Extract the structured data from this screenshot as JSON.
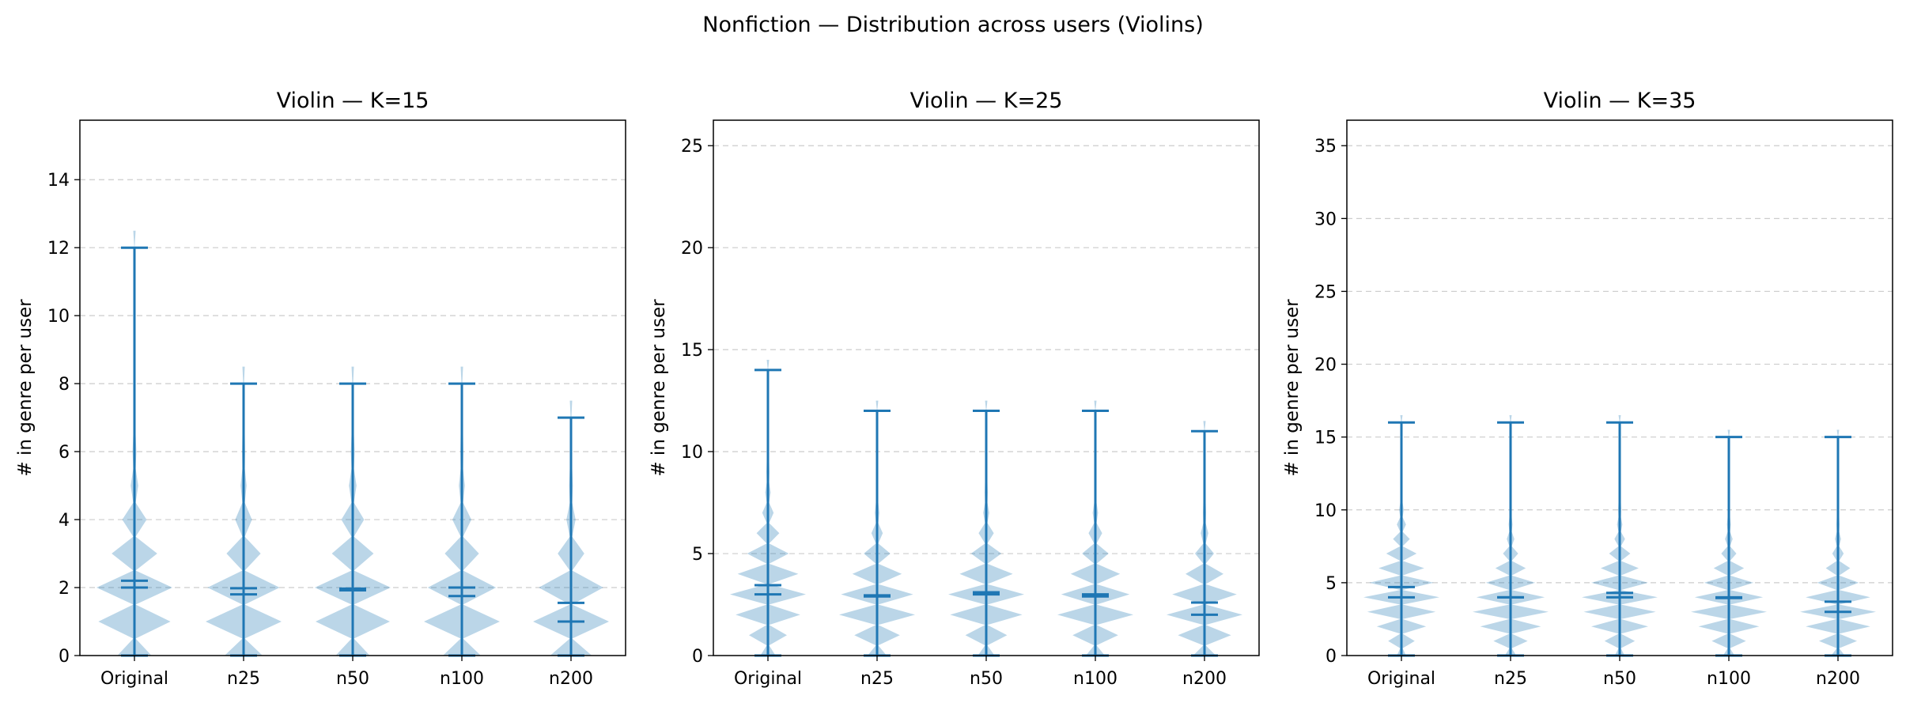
{
  "figure": {
    "title": "Nonfiction — Distribution across users (Violins)"
  },
  "colors": {
    "violin_fill": "#1f77b4",
    "violin_fill_opacity": 0.3,
    "line": "#1f77b4",
    "grid": "#cccccc"
  },
  "chart_data": [
    {
      "type": "violin",
      "title": "Violin — K=15",
      "xlabel": "",
      "ylabel": "# in genre per user",
      "categories": [
        "Original",
        "n25",
        "n50",
        "n100",
        "n200"
      ],
      "ylim": [
        0,
        15.75
      ],
      "yticks": [
        0,
        2,
        4,
        6,
        8,
        10,
        12,
        14
      ],
      "grid": "y",
      "series": [
        {
          "min": 0,
          "max": 12,
          "mean": 2.2,
          "median": 2.0,
          "density": [
            [
              0,
              0.45
            ],
            [
              1,
              0.95
            ],
            [
              2,
              1.0
            ],
            [
              3,
              0.6
            ],
            [
              4,
              0.32
            ],
            [
              5,
              0.1
            ],
            [
              6,
              0.05
            ],
            [
              7,
              0.03
            ],
            [
              8,
              0.02
            ],
            [
              9,
              0.01
            ],
            [
              10,
              0.01
            ],
            [
              11,
              0.005
            ],
            [
              12,
              0.005
            ]
          ]
        },
        {
          "min": 0,
          "max": 8,
          "mean": 1.98,
          "median": 1.8,
          "density": [
            [
              0,
              0.5
            ],
            [
              1,
              1.0
            ],
            [
              2,
              0.95
            ],
            [
              3,
              0.45
            ],
            [
              4,
              0.22
            ],
            [
              5,
              0.08
            ],
            [
              6,
              0.04
            ],
            [
              7,
              0.02
            ],
            [
              8,
              0.01
            ]
          ]
        },
        {
          "min": 0,
          "max": 8,
          "mean": 1.97,
          "median": 1.92,
          "density": [
            [
              0,
              0.45
            ],
            [
              1,
              0.98
            ],
            [
              2,
              1.0
            ],
            [
              3,
              0.55
            ],
            [
              4,
              0.3
            ],
            [
              5,
              0.1
            ],
            [
              6,
              0.05
            ],
            [
              7,
              0.02
            ],
            [
              8,
              0.01
            ]
          ]
        },
        {
          "min": 0,
          "max": 8,
          "mean": 2.0,
          "median": 1.75,
          "density": [
            [
              0,
              0.5
            ],
            [
              1,
              1.0
            ],
            [
              2,
              0.9
            ],
            [
              3,
              0.45
            ],
            [
              4,
              0.25
            ],
            [
              5,
              0.08
            ],
            [
              6,
              0.04
            ],
            [
              7,
              0.02
            ],
            [
              8,
              0.01
            ]
          ]
        },
        {
          "min": 0,
          "max": 7,
          "mean": 1.55,
          "median": 1.0,
          "density": [
            [
              0,
              0.55
            ],
            [
              1,
              1.0
            ],
            [
              2,
              0.85
            ],
            [
              3,
              0.35
            ],
            [
              4,
              0.12
            ],
            [
              5,
              0.05
            ],
            [
              6,
              0.03
            ],
            [
              7,
              0.01
            ]
          ]
        }
      ]
    },
    {
      "type": "violin",
      "title": "Violin — K=25",
      "xlabel": "",
      "ylabel": "# in genre per user",
      "categories": [
        "Original",
        "n25",
        "n50",
        "n100",
        "n200"
      ],
      "ylim": [
        0,
        26.25
      ],
      "yticks": [
        0,
        5,
        10,
        15,
        20,
        25
      ],
      "grid": "y",
      "series": [
        {
          "min": 0,
          "max": 14,
          "mean": 3.45,
          "median": 3.0,
          "density": [
            [
              0,
              0.2
            ],
            [
              1,
              0.5
            ],
            [
              2,
              0.85
            ],
            [
              3,
              1.0
            ],
            [
              4,
              0.8
            ],
            [
              5,
              0.55
            ],
            [
              6,
              0.3
            ],
            [
              7,
              0.15
            ],
            [
              8,
              0.07
            ],
            [
              9,
              0.04
            ],
            [
              10,
              0.02
            ],
            [
              11,
              0.01
            ],
            [
              12,
              0.01
            ],
            [
              13,
              0.005
            ],
            [
              14,
              0.005
            ]
          ]
        },
        {
          "min": 0,
          "max": 12,
          "mean": 2.95,
          "median": 2.9,
          "density": [
            [
              0,
              0.25
            ],
            [
              1,
              0.6
            ],
            [
              2,
              1.0
            ],
            [
              3,
              0.95
            ],
            [
              4,
              0.65
            ],
            [
              5,
              0.35
            ],
            [
              6,
              0.15
            ],
            [
              7,
              0.06
            ],
            [
              8,
              0.03
            ],
            [
              9,
              0.02
            ],
            [
              10,
              0.01
            ],
            [
              11,
              0.005
            ],
            [
              12,
              0.005
            ]
          ]
        },
        {
          "min": 0,
          "max": 12,
          "mean": 3.1,
          "median": 3.0,
          "density": [
            [
              0,
              0.22
            ],
            [
              1,
              0.55
            ],
            [
              2,
              0.95
            ],
            [
              3,
              1.0
            ],
            [
              4,
              0.7
            ],
            [
              5,
              0.4
            ],
            [
              6,
              0.2
            ],
            [
              7,
              0.08
            ],
            [
              8,
              0.04
            ],
            [
              9,
              0.02
            ],
            [
              10,
              0.01
            ],
            [
              11,
              0.005
            ],
            [
              12,
              0.005
            ]
          ]
        },
        {
          "min": 0,
          "max": 12,
          "mean": 3.0,
          "median": 2.9,
          "density": [
            [
              0,
              0.25
            ],
            [
              1,
              0.6
            ],
            [
              2,
              1.0
            ],
            [
              3,
              0.9
            ],
            [
              4,
              0.65
            ],
            [
              5,
              0.35
            ],
            [
              6,
              0.18
            ],
            [
              7,
              0.07
            ],
            [
              8,
              0.03
            ],
            [
              9,
              0.02
            ],
            [
              10,
              0.01
            ],
            [
              11,
              0.005
            ],
            [
              12,
              0.005
            ]
          ]
        },
        {
          "min": 0,
          "max": 11,
          "mean": 2.6,
          "median": 2.0,
          "density": [
            [
              0,
              0.3
            ],
            [
              1,
              0.7
            ],
            [
              2,
              1.0
            ],
            [
              3,
              0.85
            ],
            [
              4,
              0.5
            ],
            [
              5,
              0.25
            ],
            [
              6,
              0.1
            ],
            [
              7,
              0.04
            ],
            [
              8,
              0.02
            ],
            [
              9,
              0.01
            ],
            [
              10,
              0.005
            ],
            [
              11,
              0.005
            ]
          ]
        }
      ]
    },
    {
      "type": "violin",
      "title": "Violin — K=35",
      "xlabel": "",
      "ylabel": "# in genre per user",
      "categories": [
        "Original",
        "n25",
        "n50",
        "n100",
        "n200"
      ],
      "ylim": [
        0,
        36.75
      ],
      "yticks": [
        0,
        5,
        10,
        15,
        20,
        25,
        30,
        35
      ],
      "grid": "y",
      "series": [
        {
          "min": 0,
          "max": 16,
          "mean": 4.7,
          "median": 4.0,
          "density": [
            [
              0,
              0.12
            ],
            [
              1,
              0.35
            ],
            [
              2,
              0.65
            ],
            [
              3,
              0.9
            ],
            [
              4,
              1.0
            ],
            [
              5,
              0.85
            ],
            [
              6,
              0.6
            ],
            [
              7,
              0.4
            ],
            [
              8,
              0.22
            ],
            [
              9,
              0.12
            ],
            [
              10,
              0.06
            ],
            [
              11,
              0.03
            ],
            [
              12,
              0.02
            ],
            [
              13,
              0.01
            ],
            [
              14,
              0.01
            ],
            [
              15,
              0.005
            ],
            [
              16,
              0.005
            ]
          ]
        },
        {
          "min": 0,
          "max": 16,
          "mean": 4.0,
          "median": 4.0,
          "density": [
            [
              0,
              0.15
            ],
            [
              1,
              0.45
            ],
            [
              2,
              0.8
            ],
            [
              3,
              1.0
            ],
            [
              4,
              0.9
            ],
            [
              5,
              0.65
            ],
            [
              6,
              0.4
            ],
            [
              7,
              0.2
            ],
            [
              8,
              0.1
            ],
            [
              9,
              0.05
            ],
            [
              10,
              0.03
            ],
            [
              11,
              0.02
            ],
            [
              12,
              0.01
            ],
            [
              13,
              0.01
            ],
            [
              14,
              0.005
            ],
            [
              15,
              0.005
            ],
            [
              16,
              0.005
            ]
          ]
        },
        {
          "min": 0,
          "max": 16,
          "mean": 4.3,
          "median": 4.0,
          "density": [
            [
              0,
              0.13
            ],
            [
              1,
              0.4
            ],
            [
              2,
              0.75
            ],
            [
              3,
              0.95
            ],
            [
              4,
              1.0
            ],
            [
              5,
              0.75
            ],
            [
              6,
              0.5
            ],
            [
              7,
              0.28
            ],
            [
              8,
              0.14
            ],
            [
              9,
              0.07
            ],
            [
              10,
              0.04
            ],
            [
              11,
              0.02
            ],
            [
              12,
              0.01
            ],
            [
              13,
              0.01
            ],
            [
              14,
              0.005
            ],
            [
              15,
              0.005
            ],
            [
              16,
              0.005
            ]
          ]
        },
        {
          "min": 0,
          "max": 15,
          "mean": 4.0,
          "median": 3.95,
          "density": [
            [
              0,
              0.15
            ],
            [
              1,
              0.45
            ],
            [
              2,
              0.8
            ],
            [
              3,
              1.0
            ],
            [
              4,
              0.9
            ],
            [
              5,
              0.65
            ],
            [
              6,
              0.4
            ],
            [
              7,
              0.2
            ],
            [
              8,
              0.1
            ],
            [
              9,
              0.05
            ],
            [
              10,
              0.03
            ],
            [
              11,
              0.02
            ],
            [
              12,
              0.01
            ],
            [
              13,
              0.005
            ],
            [
              14,
              0.005
            ],
            [
              15,
              0.005
            ]
          ]
        },
        {
          "min": 0,
          "max": 15,
          "mean": 3.7,
          "median": 3.0,
          "density": [
            [
              0,
              0.18
            ],
            [
              1,
              0.5
            ],
            [
              2,
              0.85
            ],
            [
              3,
              1.0
            ],
            [
              4,
              0.85
            ],
            [
              5,
              0.55
            ],
            [
              6,
              0.32
            ],
            [
              7,
              0.15
            ],
            [
              8,
              0.08
            ],
            [
              9,
              0.04
            ],
            [
              10,
              0.02
            ],
            [
              11,
              0.01
            ],
            [
              12,
              0.01
            ],
            [
              13,
              0.005
            ],
            [
              14,
              0.005
            ],
            [
              15,
              0.005
            ]
          ]
        }
      ]
    }
  ]
}
